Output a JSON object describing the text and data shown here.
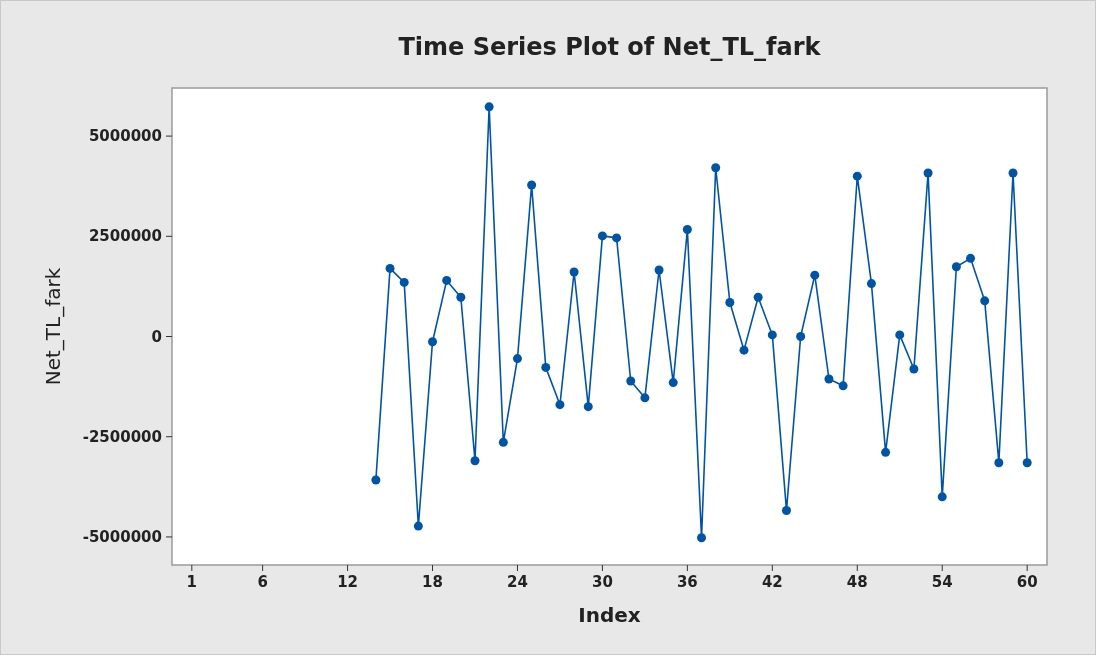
{
  "chart_data": {
    "type": "line",
    "title": "Time Series Plot of Net_TL_fark",
    "xlabel": "Index",
    "ylabel": "Net_TL_fark",
    "x": [
      14,
      15,
      16,
      17,
      18,
      19,
      20,
      21,
      22,
      23,
      24,
      25,
      26,
      27,
      28,
      29,
      30,
      31,
      32,
      33,
      34,
      35,
      36,
      37,
      38,
      39,
      40,
      41,
      42,
      43,
      44,
      45,
      46,
      47,
      48,
      49,
      50,
      51,
      52,
      53,
      54,
      55,
      56,
      57,
      58,
      59,
      60
    ],
    "series": [
      {
        "color": "#0054a6",
        "values": [
          -3580000,
          1700000,
          1350000,
          -4730000,
          -130000,
          1400000,
          980000,
          -3100000,
          5730000,
          -2640000,
          -550000,
          3780000,
          -770000,
          -1700000,
          1610000,
          -1750000,
          2510000,
          2460000,
          -1110000,
          -1530000,
          1660000,
          -1150000,
          2670000,
          -5020000,
          4210000,
          850000,
          -340000,
          980000,
          40000,
          -4340000,
          0,
          1530000,
          -1060000,
          -1230000,
          4000000,
          1320000,
          -2890000,
          40000,
          -810000,
          4080000,
          -4000000,
          1740000,
          1950000,
          890000,
          -3150000,
          4080000,
          -3150000
        ]
      }
    ],
    "xlim": [
      -0.4,
      61.4
    ],
    "xticks": [
      1,
      6,
      12,
      18,
      24,
      30,
      36,
      42,
      48,
      54,
      60
    ],
    "ylim": [
      -5700000,
      6200000
    ],
    "yticks": [
      -5000000,
      -2500000,
      0,
      2500000,
      5000000
    ],
    "marker": "circle",
    "line_style": "solid",
    "grid": false
  }
}
